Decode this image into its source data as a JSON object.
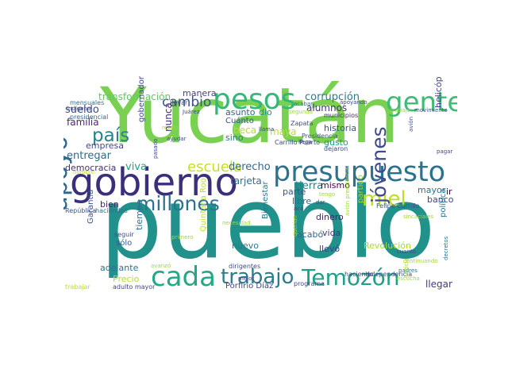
{
  "words": [
    {
      "t": "Yucatán",
      "c": "#7ad151"
    },
    {
      "t": "pueblo",
      "c": "#21918c"
    },
    {
      "t": "gobierno",
      "c": "#3b2f7a"
    },
    {
      "t": "presupuesto",
      "c": "#2c728e"
    },
    {
      "t": "pesos",
      "c": "#35b779"
    },
    {
      "t": "gente",
      "c": "#3cbc74"
    },
    {
      "t": "cada",
      "c": "#22a884"
    },
    {
      "t": "trabajo",
      "c": "#2a7b8e"
    },
    {
      "t": "Temozón",
      "c": "#1f9e89"
    },
    {
      "t": "millones",
      "c": "#2c738e"
    },
    {
      "t": "miel",
      "c": "#bddf26"
    },
    {
      "t": "apoyo",
      "c": "#30698e"
    },
    {
      "t": "jóvenes",
      "c": "#3e4a89"
    },
    {
      "t": "país",
      "c": "#26828e"
    },
    {
      "t": "cambio",
      "c": "#3b528b"
    },
    {
      "t": "escuela",
      "c": "#c8e020"
    },
    {
      "t": "corrupción",
      "c": "#2a788e"
    },
    {
      "t": "transformación",
      "c": "#5ec962"
    },
    {
      "t": "alumnos",
      "c": "#46337e"
    },
    {
      "t": "sueldo",
      "c": "#3e4989"
    },
    {
      "t": "familia",
      "c": "#482576"
    },
    {
      "t": "empresa",
      "c": "#3f4788"
    },
    {
      "t": "entregar",
      "c": "#306a8e"
    },
    {
      "t": "democracia",
      "c": "#472c7a"
    },
    {
      "t": "viva",
      "c": "#1fa088"
    },
    {
      "t": "manera",
      "c": "#433e85"
    },
    {
      "t": "derecho",
      "c": "#31688e"
    },
    {
      "t": "tierra",
      "c": "#25858e"
    },
    {
      "t": "mismo",
      "c": "#440154"
    },
    {
      "t": "historia",
      "c": "#3b518b"
    },
    {
      "t": "gusto",
      "c": "#1f9a8a"
    },
    {
      "t": "asunto",
      "c": "#355f8d"
    },
    {
      "t": "dio",
      "c": "#21918c"
    },
    {
      "t": "beca",
      "c": "#b5de2b"
    },
    {
      "t": "sino",
      "c": "#2a788e"
    },
    {
      "t": "Cuánto",
      "c": "#3b528b"
    },
    {
      "t": "maya",
      "c": "#bddf26"
    },
    {
      "t": "tarjeta",
      "c": "#2d708e"
    },
    {
      "t": "parte",
      "c": "#3b528b"
    },
    {
      "t": "libre",
      "c": "#2e6e8e"
    },
    {
      "t": "dinero",
      "c": "#482173"
    },
    {
      "t": "vida",
      "c": "#46327e"
    },
    {
      "t": "acabó",
      "c": "#31688e"
    },
    {
      "t": "llevó",
      "c": "#433e85"
    },
    {
      "t": "nuevo",
      "c": "#2a788e"
    },
    {
      "t": "bien",
      "c": "#482071"
    },
    {
      "t": "adelante",
      "c": "#2e6f8e"
    },
    {
      "t": "Precio",
      "c": "#b5de2b"
    },
    {
      "t": "sólo",
      "c": "#365c8d"
    },
    {
      "t": "tiempo",
      "c": "#2c728e"
    },
    {
      "t": "cabo",
      "c": "#46307e"
    },
    {
      "t": "Garantía",
      "c": "#3b528b"
    },
    {
      "t": "nunca",
      "c": "#472d7b"
    },
    {
      "t": "gobernador",
      "c": "#3e4989"
    },
    {
      "t": "Quintana Roo",
      "c": "#bddf26"
    },
    {
      "t": "Bienestar",
      "c": "#2a788e"
    },
    {
      "t": "dirigentes",
      "c": "#3e4989"
    },
    {
      "t": "Porfirio Díaz",
      "c": "#414487"
    },
    {
      "t": "Revolución",
      "c": "#a8db34"
    },
    {
      "t": "partido",
      "c": "#a0da39"
    },
    {
      "t": "helicóptero",
      "c": "#3f4788"
    },
    {
      "t": "mayor",
      "c": "#2c738e"
    },
    {
      "t": "ir",
      "c": "#440154"
    },
    {
      "t": "banco",
      "c": "#414487"
    },
    {
      "t": "política",
      "c": "#2c728e"
    },
    {
      "t": "llegar",
      "c": "#443983"
    },
    {
      "t": "Felipe Carrillo",
      "c": "#3b528b"
    },
    {
      "t": "Carrillo Puerto",
      "c": "#3e4989"
    },
    {
      "t": "Zapata",
      "c": "#3b528b"
    },
    {
      "t": "Presidencia",
      "c": "#3b528b"
    },
    {
      "t": "dejaron",
      "c": "#3e4989"
    },
    {
      "t": "municipios",
      "c": "#482878"
    },
    {
      "t": "haciendo",
      "c": "#414487"
    },
    {
      "t": "Independencia",
      "c": "#3b528b"
    },
    {
      "t": "avión presidencial",
      "c": "#a0da39"
    },
    {
      "t": "adulto mayor",
      "c": "#414487"
    },
    {
      "t": "programa",
      "c": "#3e4989"
    },
    {
      "t": "querían",
      "c": "#a0da39"
    },
    {
      "t": "mensuales",
      "c": "#2c728e"
    },
    {
      "t": "presidencial",
      "c": "#30698e"
    },
    {
      "t": "indígena",
      "c": "#3b528b"
    },
    {
      "t": "hombre",
      "c": "#b5de2b"
    },
    {
      "t": "República",
      "c": "#3b528b"
    },
    {
      "t": "haciendas",
      "c": "#2c728e"
    },
    {
      "t": "trabajar",
      "c": "#bddf26"
    },
    {
      "t": "seguir",
      "c": "#3e4989"
    },
    {
      "t": "primero",
      "c": "#a0da39"
    },
    {
      "t": "avanzó",
      "c": "#a0da39"
    },
    {
      "t": "mejor",
      "c": "#3e4989"
    },
    {
      "t": "llevar",
      "c": "#3e4989"
    },
    {
      "t": "Juárez",
      "c": "#414487"
    },
    {
      "t": "repito",
      "c": "#a0da39"
    },
    {
      "t": "ayudar",
      "c": "#3e4989"
    },
    {
      "t": "pasado",
      "c": "#3e4989"
    },
    {
      "t": "acabar",
      "c": "#2c728e"
    },
    {
      "t": "llama",
      "c": "#3e4989"
    },
    {
      "t": "llega",
      "c": "#3e4989"
    },
    {
      "t": "apoyando",
      "c": "#3e4989"
    },
    {
      "t": "movimiento",
      "c": "#3b528b"
    },
    {
      "t": "trabajo",
      "c": "#a0da39"
    },
    {
      "t": "avión",
      "c": "#3b528b"
    },
    {
      "t": "pagar",
      "c": "#3e4989"
    },
    {
      "t": "padres",
      "c": "#2c728e"
    },
    {
      "t": "justicia",
      "c": "#a0da39"
    },
    {
      "t": "dar",
      "c": "#3e4989"
    },
    {
      "t": "cuanto",
      "c": "#3e4989"
    },
    {
      "t": "escucha",
      "c": "#a0da39"
    },
    {
      "t": "segunda",
      "c": "#a0da39"
    },
    {
      "t": "acá",
      "c": "#3e4989"
    },
    {
      "t": "tengo",
      "c": "#a0da39"
    },
    {
      "t": "decretos",
      "c": "#2c728e"
    },
    {
      "t": "necesidad",
      "c": "#a0da39"
    },
    {
      "t": "sincaciales",
      "c": "#a0da39"
    },
    {
      "t": "continuando",
      "c": "#a0da39"
    }
  ]
}
